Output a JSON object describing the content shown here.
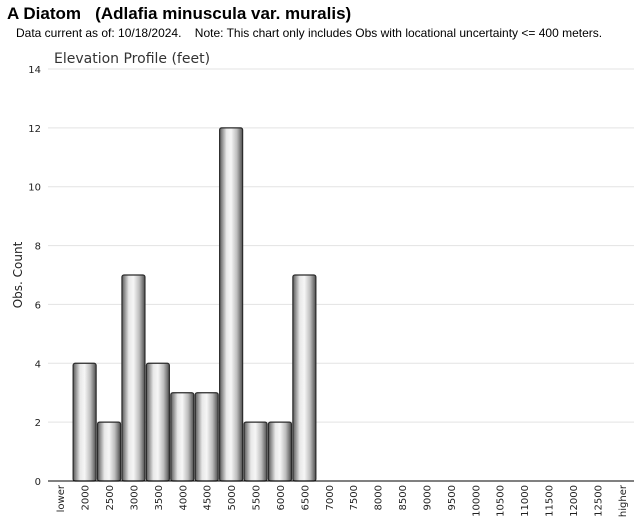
{
  "header": {
    "title": "A Diatom   (Adlafia minuscula var. muralis)",
    "note": "Data current as of: 10/18/2024.    Note: This chart only includes Obs with locational uncertainty <= 400 meters."
  },
  "chart_data": {
    "type": "bar",
    "title": "Elevation Profile (feet)",
    "xlabel": "",
    "ylabel": "Obs. Count",
    "categories": [
      "lower",
      "2000",
      "2500",
      "3000",
      "3500",
      "4000",
      "4500",
      "5000",
      "5500",
      "6000",
      "6500",
      "7000",
      "7500",
      "8000",
      "8500",
      "9000",
      "9500",
      "10000",
      "10500",
      "11000",
      "11500",
      "12000",
      "12500",
      "higher"
    ],
    "values": [
      0,
      4,
      2,
      7,
      4,
      3,
      3,
      12,
      2,
      2,
      7,
      0,
      0,
      0,
      0,
      0,
      0,
      0,
      0,
      0,
      0,
      0,
      0,
      0
    ],
    "ylim": [
      0,
      14
    ],
    "yticks": [
      0,
      2,
      4,
      6,
      8,
      10,
      12,
      14
    ],
    "grid": true,
    "legend": "none"
  }
}
